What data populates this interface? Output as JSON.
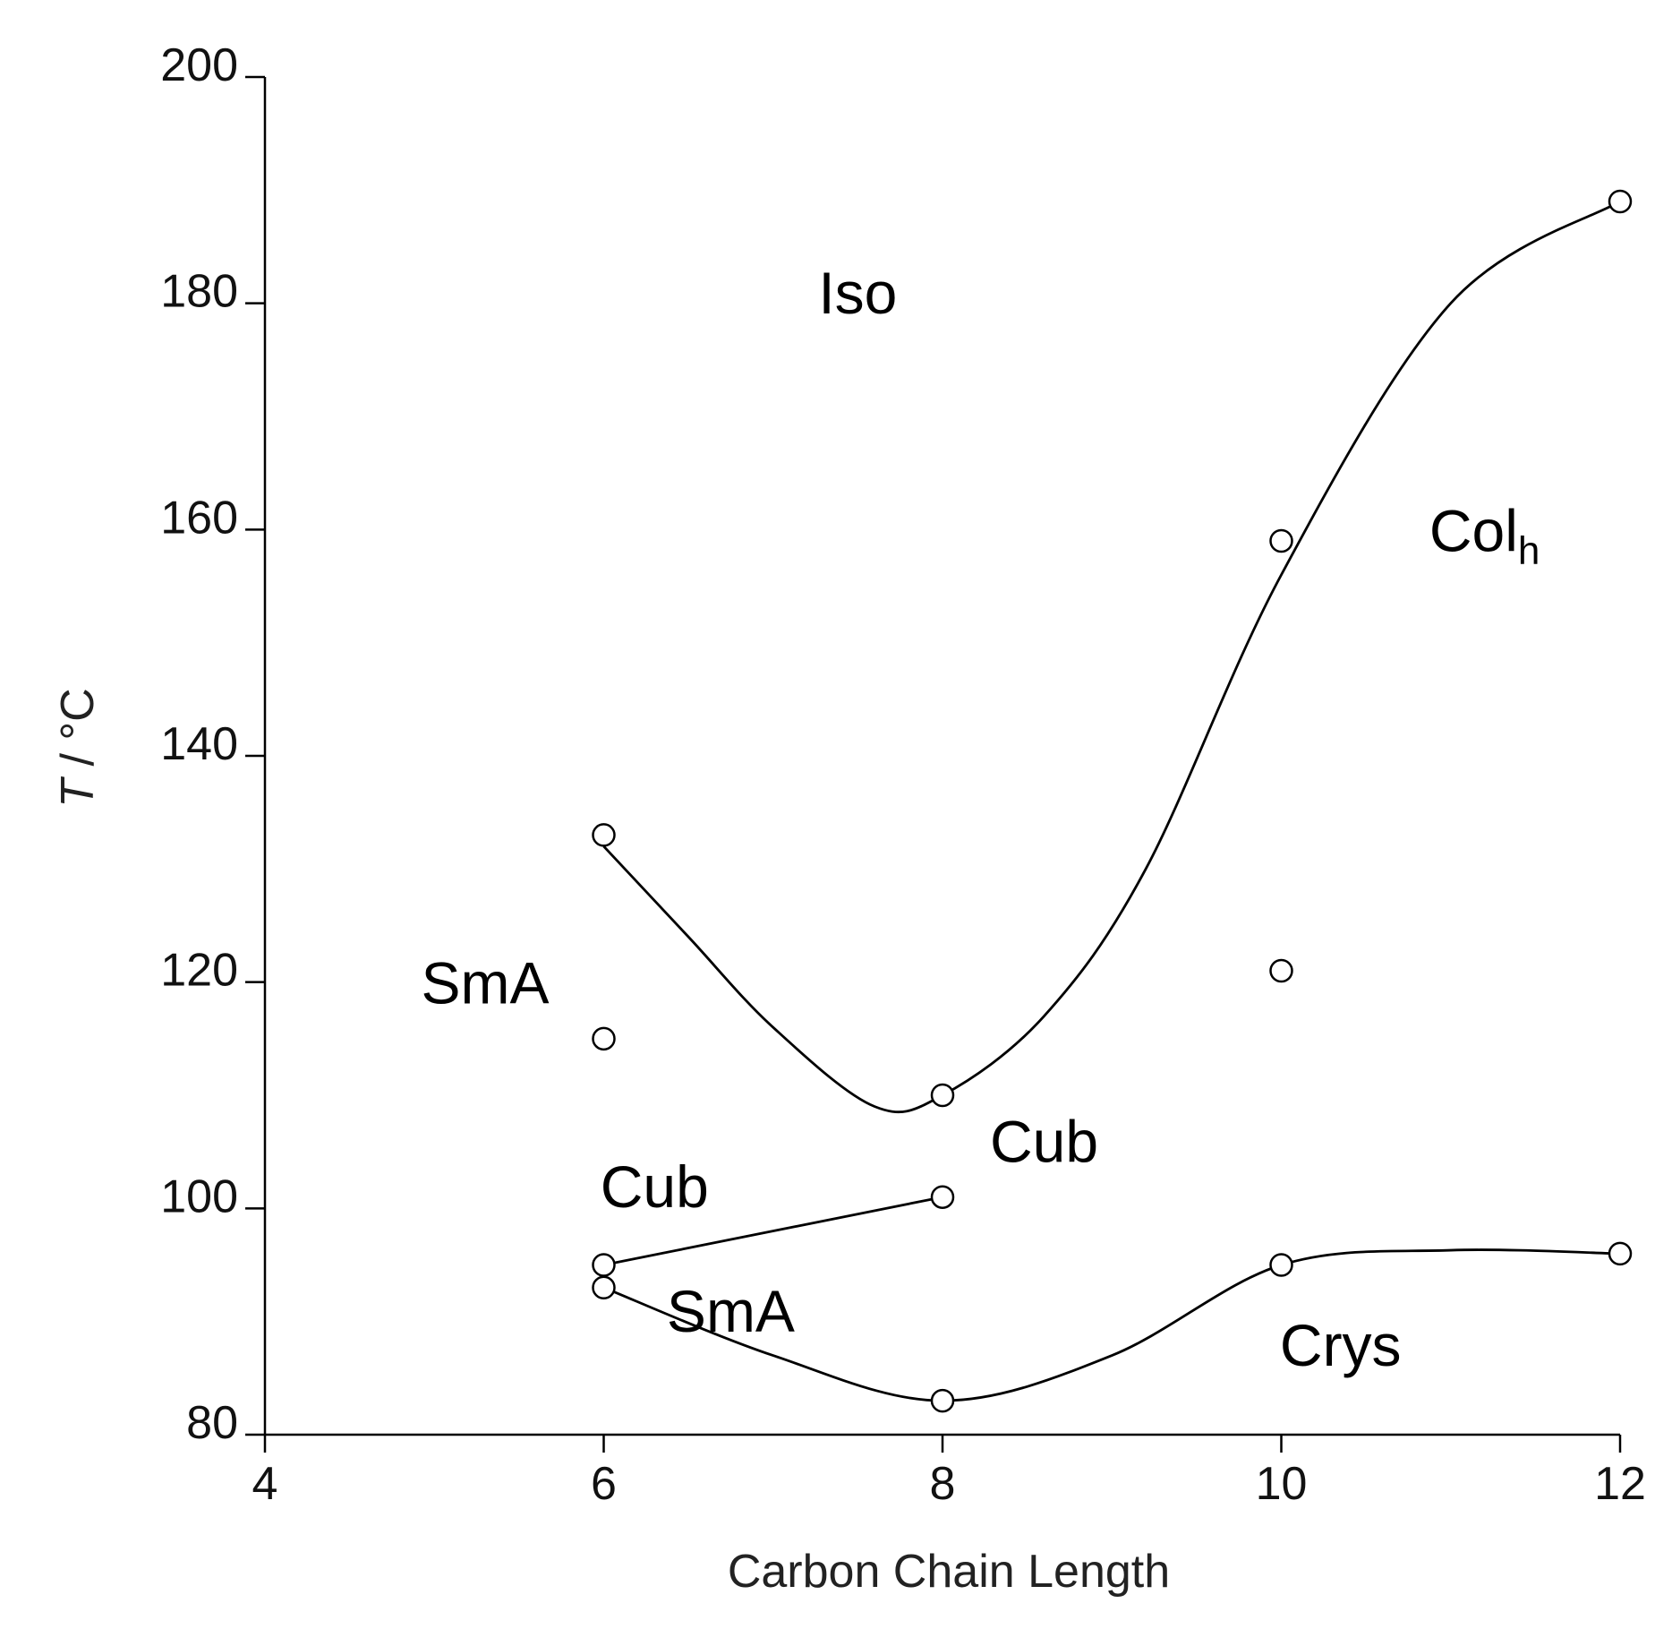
{
  "chart_data": {
    "type": "scatter",
    "title": "",
    "xlabel": "Carbon Chain Length",
    "ylabel_italic": "T",
    "ylabel_rest": " / °C",
    "xlim": [
      4,
      12
    ],
    "ylim": [
      80,
      200
    ],
    "xticks": [
      4,
      6,
      8,
      10,
      12
    ],
    "yticks": [
      80,
      100,
      120,
      140,
      160,
      180,
      200
    ],
    "grid": false,
    "points": [
      {
        "x": 6,
        "y": 133
      },
      {
        "x": 6,
        "y": 115
      },
      {
        "x": 6,
        "y": 95
      },
      {
        "x": 6,
        "y": 93
      },
      {
        "x": 8,
        "y": 110
      },
      {
        "x": 8,
        "y": 101
      },
      {
        "x": 8,
        "y": 83
      },
      {
        "x": 10,
        "y": 159
      },
      {
        "x": 10,
        "y": 121
      },
      {
        "x": 10,
        "y": 95
      },
      {
        "x": 12,
        "y": 189
      },
      {
        "x": 12,
        "y": 96
      }
    ],
    "curves": [
      {
        "name": "isotropization-boundary",
        "points": [
          [
            6,
            132
          ],
          [
            6.5,
            124
          ],
          [
            7,
            116
          ],
          [
            7.6,
            109
          ],
          [
            8,
            110
          ],
          [
            8.6,
            117
          ],
          [
            9.2,
            130
          ],
          [
            10,
            156
          ],
          [
            11,
            180
          ],
          [
            12,
            189
          ]
        ]
      },
      {
        "name": "cub-smA-boundary",
        "points": [
          [
            6,
            95
          ],
          [
            8,
            101
          ]
        ]
      },
      {
        "name": "melting-boundary",
        "points": [
          [
            6,
            93
          ],
          [
            7,
            87
          ],
          [
            8,
            83
          ],
          [
            9,
            87
          ],
          [
            10,
            95
          ],
          [
            11,
            96.3
          ],
          [
            12,
            96
          ]
        ]
      }
    ],
    "phase_labels": [
      {
        "text": "Iso",
        "sub": "",
        "x": 7.5,
        "y": 181
      },
      {
        "text": "Col",
        "sub": "h",
        "x": 11.2,
        "y": 160
      },
      {
        "text": "SmA",
        "sub": "",
        "x": 5.3,
        "y": 120
      },
      {
        "text": "Cub",
        "sub": "",
        "x": 6.3,
        "y": 102
      },
      {
        "text": "Cub",
        "sub": "",
        "x": 8.6,
        "y": 106
      },
      {
        "text": "SmA",
        "sub": "",
        "x": 6.75,
        "y": 91
      },
      {
        "text": "Crys",
        "sub": "",
        "x": 10.35,
        "y": 88
      }
    ]
  }
}
